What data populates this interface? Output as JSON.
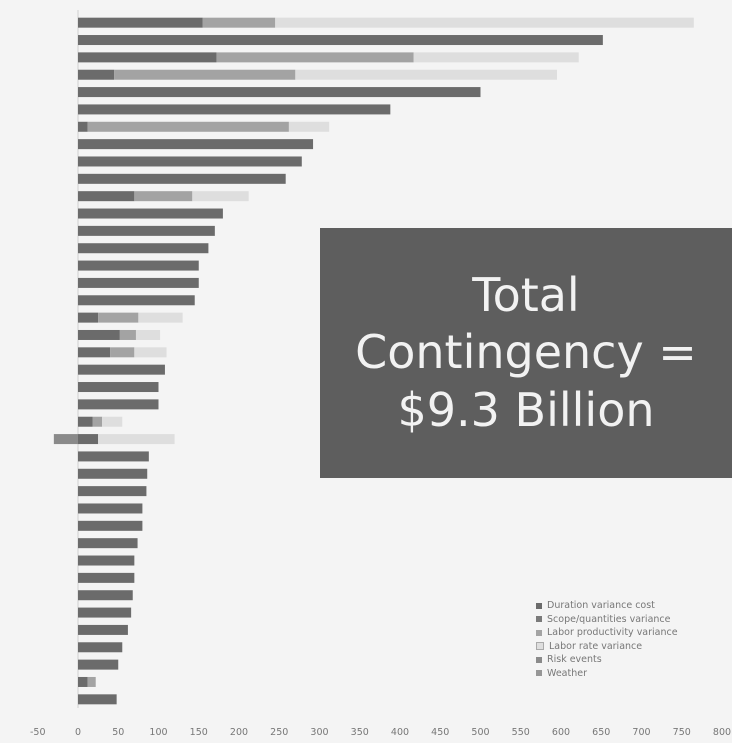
{
  "chart_data": {
    "type": "bar",
    "orientation": "horizontal",
    "stacked": true,
    "x_ticks": [
      "-50",
      "0",
      "50",
      "100",
      "150",
      "200",
      "250",
      "300",
      "350",
      "400",
      "450",
      "500",
      "550",
      "600",
      "650",
      "700",
      "750",
      "800"
    ],
    "xlim": [
      -50,
      800
    ],
    "row_labels": [
      "",
      "",
      "",
      "",
      "",
      "",
      "",
      "",
      "",
      "",
      "",
      "",
      "",
      "",
      "",
      "",
      "",
      "",
      "",
      "",
      "",
      "",
      "",
      "",
      "",
      "",
      "",
      "",
      "",
      "",
      "",
      "",
      "",
      "",
      "",
      "",
      "",
      "",
      "",
      ""
    ],
    "series": [
      {
        "name": "Duration variance cost",
        "color": "#6b6b6b",
        "values": [
          155,
          652,
          172,
          45,
          500,
          388,
          12,
          292,
          278,
          258,
          70,
          180,
          170,
          162,
          150,
          150,
          145,
          25,
          52,
          40,
          108,
          100,
          100,
          18,
          25,
          88,
          86,
          85,
          80,
          80,
          74,
          70,
          70,
          68,
          66,
          62,
          55,
          50,
          12,
          48
        ]
      },
      {
        "name": "Scope/quantities variance",
        "color": "#7a7a7a",
        "values": [
          0,
          0,
          0,
          0,
          0,
          0,
          0,
          0,
          0,
          0,
          0,
          0,
          0,
          0,
          0,
          0,
          0,
          0,
          0,
          0,
          0,
          0,
          0,
          0,
          0,
          0,
          0,
          0,
          0,
          0,
          0,
          0,
          0,
          0,
          0,
          0,
          0,
          0,
          0,
          0
        ]
      },
      {
        "name": "Labor productivity variance",
        "color": "#a3a3a3",
        "values": [
          90,
          0,
          245,
          225,
          0,
          0,
          250,
          0,
          0,
          0,
          72,
          0,
          0,
          0,
          0,
          0,
          0,
          50,
          20,
          30,
          0,
          0,
          0,
          12,
          0,
          0,
          0,
          0,
          0,
          0,
          0,
          0,
          0,
          0,
          0,
          0,
          0,
          0,
          10,
          0
        ]
      },
      {
        "name": "Labor rate variance",
        "color": "#dedede",
        "values": [
          520,
          0,
          205,
          325,
          0,
          0,
          50,
          0,
          0,
          0,
          70,
          0,
          0,
          0,
          0,
          0,
          0,
          55,
          30,
          40,
          0,
          0,
          0,
          25,
          95,
          0,
          0,
          0,
          0,
          0,
          0,
          0,
          0,
          0,
          0,
          0,
          0,
          0,
          0,
          0
        ]
      },
      {
        "name": "Risk events",
        "color": "#8a8a8a",
        "values": [
          0,
          0,
          0,
          0,
          0,
          0,
          0,
          0,
          0,
          0,
          0,
          0,
          0,
          0,
          0,
          0,
          0,
          0,
          0,
          0,
          0,
          0,
          0,
          0,
          -30,
          0,
          0,
          0,
          0,
          0,
          0,
          0,
          0,
          0,
          0,
          0,
          0,
          0,
          0,
          0
        ]
      },
      {
        "name": "Weather",
        "color": "#969696",
        "values": [
          0,
          0,
          0,
          0,
          0,
          0,
          0,
          0,
          0,
          0,
          0,
          0,
          0,
          0,
          0,
          0,
          0,
          0,
          0,
          0,
          0,
          0,
          0,
          0,
          0,
          0,
          0,
          0,
          0,
          0,
          0,
          0,
          0,
          0,
          0,
          0,
          0,
          0,
          0,
          0
        ]
      }
    ],
    "annotation_lines": [
      "Total",
      "Contingency =",
      "$9.3 Billion"
    ],
    "legend_position": "bottom-right",
    "grid": false
  }
}
